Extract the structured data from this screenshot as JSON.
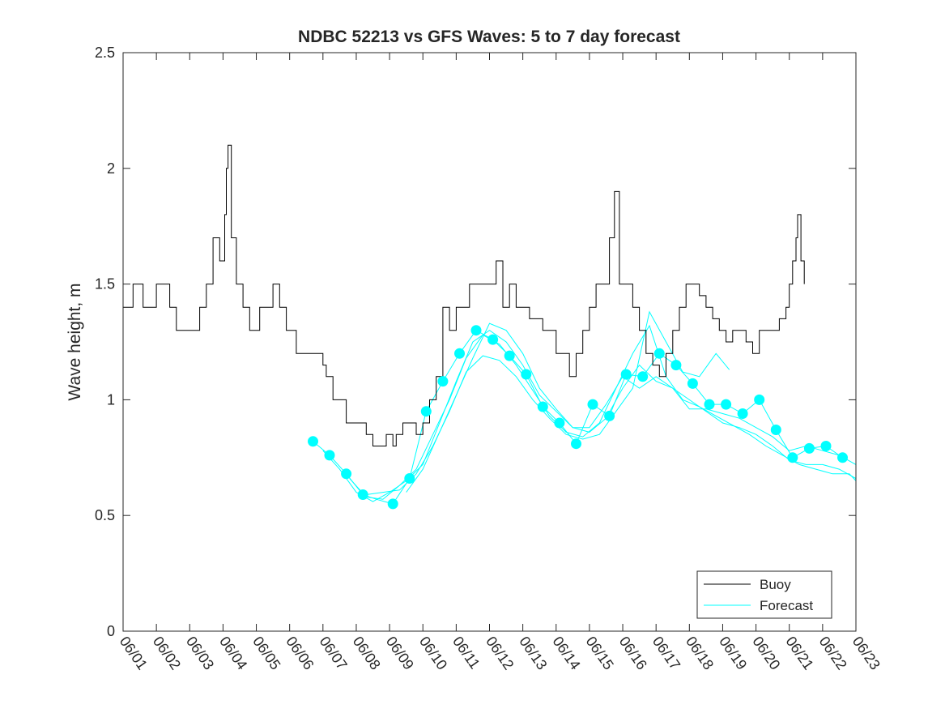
{
  "chart_data": {
    "type": "line",
    "title": "NDBC 52213 vs GFS Waves: 5 to 7 day forecast",
    "xlabel": "",
    "ylabel": "Wave height, m",
    "xlim": [
      0,
      22
    ],
    "ylim": [
      0,
      2.5
    ],
    "x_unit": "days since 06/01",
    "x_ticks": [
      0,
      1,
      2,
      3,
      4,
      5,
      6,
      7,
      8,
      9,
      10,
      11,
      12,
      13,
      14,
      15,
      16,
      17,
      18,
      19,
      20,
      21,
      22
    ],
    "x_tick_labels": [
      "06/01",
      "06/02",
      "06/03",
      "06/04",
      "06/05",
      "06/06",
      "06/07",
      "06/08",
      "06/09",
      "06/10",
      "06/11",
      "06/12",
      "06/13",
      "06/14",
      "06/15",
      "06/16",
      "06/17",
      "06/18",
      "06/19",
      "06/20",
      "06/21",
      "06/22",
      "06/23"
    ],
    "y_ticks": [
      0,
      0.5,
      1,
      1.5,
      2,
      2.5
    ],
    "y_tick_labels": [
      "0",
      "0.5",
      "1",
      "1.5",
      "2",
      "2.5"
    ],
    "grid": false,
    "legend_position": "bottom-right",
    "colors": {
      "buoy": "#000000",
      "forecast": "#00ffff"
    },
    "buoy": {
      "name": "Buoy",
      "points": [
        [
          0.0,
          1.4
        ],
        [
          0.3,
          1.5
        ],
        [
          0.6,
          1.4
        ],
        [
          1.0,
          1.5
        ],
        [
          1.4,
          1.4
        ],
        [
          1.6,
          1.3
        ],
        [
          1.8,
          1.3
        ],
        [
          2.0,
          1.3
        ],
        [
          2.2,
          1.3
        ],
        [
          2.3,
          1.4
        ],
        [
          2.5,
          1.5
        ],
        [
          2.7,
          1.7
        ],
        [
          2.9,
          1.6
        ],
        [
          3.05,
          1.8
        ],
        [
          3.1,
          2.0
        ],
        [
          3.15,
          2.1
        ],
        [
          3.25,
          1.7
        ],
        [
          3.4,
          1.5
        ],
        [
          3.6,
          1.4
        ],
        [
          3.8,
          1.3
        ],
        [
          4.0,
          1.3
        ],
        [
          4.1,
          1.4
        ],
        [
          4.3,
          1.4
        ],
        [
          4.5,
          1.5
        ],
        [
          4.7,
          1.4
        ],
        [
          4.9,
          1.3
        ],
        [
          5.0,
          1.3
        ],
        [
          5.2,
          1.2
        ],
        [
          5.4,
          1.2
        ],
        [
          5.6,
          1.2
        ],
        [
          5.8,
          1.2
        ],
        [
          6.0,
          1.15
        ],
        [
          6.1,
          1.1
        ],
        [
          6.3,
          1.0
        ],
        [
          6.5,
          1.0
        ],
        [
          6.7,
          0.9
        ],
        [
          6.9,
          0.9
        ],
        [
          7.1,
          0.9
        ],
        [
          7.3,
          0.85
        ],
        [
          7.5,
          0.8
        ],
        [
          7.7,
          0.8
        ],
        [
          7.9,
          0.85
        ],
        [
          8.1,
          0.8
        ],
        [
          8.2,
          0.85
        ],
        [
          8.4,
          0.9
        ],
        [
          8.6,
          0.9
        ],
        [
          8.8,
          0.85
        ],
        [
          9.0,
          0.9
        ],
        [
          9.2,
          1.0
        ],
        [
          9.4,
          1.1
        ],
        [
          9.6,
          1.4
        ],
        [
          9.8,
          1.3
        ],
        [
          10.0,
          1.4
        ],
        [
          10.2,
          1.4
        ],
        [
          10.4,
          1.5
        ],
        [
          10.6,
          1.5
        ],
        [
          10.8,
          1.5
        ],
        [
          11.0,
          1.5
        ],
        [
          11.2,
          1.6
        ],
        [
          11.4,
          1.4
        ],
        [
          11.6,
          1.5
        ],
        [
          11.8,
          1.4
        ],
        [
          12.0,
          1.4
        ],
        [
          12.2,
          1.35
        ],
        [
          12.4,
          1.35
        ],
        [
          12.6,
          1.3
        ],
        [
          12.8,
          1.3
        ],
        [
          13.0,
          1.2
        ],
        [
          13.2,
          1.2
        ],
        [
          13.4,
          1.1
        ],
        [
          13.6,
          1.2
        ],
        [
          13.8,
          1.3
        ],
        [
          14.0,
          1.4
        ],
        [
          14.2,
          1.5
        ],
        [
          14.4,
          1.5
        ],
        [
          14.6,
          1.7
        ],
        [
          14.75,
          1.9
        ],
        [
          14.9,
          1.5
        ],
        [
          15.1,
          1.5
        ],
        [
          15.3,
          1.4
        ],
        [
          15.5,
          1.3
        ],
        [
          15.7,
          1.2
        ],
        [
          15.9,
          1.15
        ],
        [
          16.1,
          1.1
        ],
        [
          16.3,
          1.2
        ],
        [
          16.5,
          1.3
        ],
        [
          16.7,
          1.4
        ],
        [
          16.9,
          1.5
        ],
        [
          17.1,
          1.5
        ],
        [
          17.3,
          1.45
        ],
        [
          17.5,
          1.4
        ],
        [
          17.7,
          1.35
        ],
        [
          17.9,
          1.3
        ],
        [
          18.1,
          1.25
        ],
        [
          18.3,
          1.3
        ],
        [
          18.5,
          1.3
        ],
        [
          18.7,
          1.25
        ],
        [
          18.9,
          1.2
        ],
        [
          19.1,
          1.3
        ],
        [
          19.3,
          1.3
        ],
        [
          19.5,
          1.3
        ],
        [
          19.7,
          1.35
        ],
        [
          19.9,
          1.4
        ],
        [
          20.0,
          1.5
        ],
        [
          20.1,
          1.6
        ],
        [
          20.2,
          1.7
        ],
        [
          20.25,
          1.8
        ],
        [
          20.35,
          1.6
        ],
        [
          20.45,
          1.5
        ]
      ]
    },
    "forecast": {
      "name": "Forecast",
      "markers": [
        [
          5.7,
          0.82
        ],
        [
          6.2,
          0.76
        ],
        [
          6.7,
          0.68
        ],
        [
          7.2,
          0.59
        ],
        [
          8.1,
          0.55
        ],
        [
          8.6,
          0.66
        ],
        [
          9.1,
          0.95
        ],
        [
          9.6,
          1.08
        ],
        [
          10.1,
          1.2
        ],
        [
          10.6,
          1.3
        ],
        [
          11.1,
          1.26
        ],
        [
          11.6,
          1.19
        ],
        [
          12.1,
          1.11
        ],
        [
          12.6,
          0.97
        ],
        [
          13.1,
          0.9
        ],
        [
          13.6,
          0.81
        ],
        [
          14.1,
          0.98
        ],
        [
          14.6,
          0.93
        ],
        [
          15.1,
          1.11
        ],
        [
          15.6,
          1.1
        ],
        [
          16.1,
          1.2
        ],
        [
          16.6,
          1.15
        ],
        [
          17.1,
          1.07
        ],
        [
          17.6,
          0.98
        ],
        [
          18.1,
          0.98
        ],
        [
          18.6,
          0.94
        ],
        [
          19.1,
          1.0
        ],
        [
          19.6,
          0.87
        ],
        [
          20.1,
          0.75
        ],
        [
          20.6,
          0.79
        ],
        [
          21.1,
          0.8
        ],
        [
          21.6,
          0.75
        ]
      ],
      "runs": [
        [
          [
            5.7,
            0.82
          ],
          [
            6.2,
            0.76
          ],
          [
            6.7,
            0.68
          ],
          [
            7.2,
            0.59
          ],
          [
            7.6,
            0.57
          ],
          [
            8.1,
            0.55
          ],
          [
            8.6,
            0.66
          ],
          [
            9.1,
            0.95
          ],
          [
            9.6,
            1.08
          ],
          [
            10.1,
            1.2
          ],
          [
            10.6,
            1.3
          ],
          [
            11.1,
            1.26
          ],
          [
            11.6,
            1.19
          ],
          [
            12.1,
            1.11
          ],
          [
            12.6,
            0.97
          ],
          [
            13.1,
            0.9
          ],
          [
            13.6,
            0.81
          ],
          [
            14.1,
            0.98
          ],
          [
            14.6,
            0.93
          ],
          [
            15.1,
            1.11
          ],
          [
            15.6,
            1.1
          ],
          [
            16.1,
            1.2
          ],
          [
            16.6,
            1.15
          ],
          [
            17.1,
            1.07
          ],
          [
            17.6,
            0.98
          ],
          [
            18.1,
            0.98
          ],
          [
            18.6,
            0.94
          ],
          [
            19.1,
            1.0
          ],
          [
            19.6,
            0.87
          ],
          [
            20.1,
            0.75
          ],
          [
            20.6,
            0.79
          ],
          [
            21.1,
            0.8
          ],
          [
            21.6,
            0.75
          ]
        ],
        [
          [
            6.0,
            0.78
          ],
          [
            6.5,
            0.7
          ],
          [
            7.0,
            0.6
          ],
          [
            7.5,
            0.56
          ],
          [
            8.0,
            0.6
          ],
          [
            8.5,
            0.65
          ],
          [
            9.0,
            0.72
          ],
          [
            9.5,
            0.9
          ],
          [
            10.0,
            1.08
          ],
          [
            10.5,
            1.25
          ],
          [
            11.0,
            1.3
          ],
          [
            11.5,
            1.25
          ],
          [
            12.0,
            1.15
          ],
          [
            12.5,
            1.02
          ],
          [
            13.0,
            0.95
          ],
          [
            13.5,
            0.88
          ],
          [
            14.0,
            0.88
          ],
          [
            14.5,
            0.98
          ],
          [
            15.0,
            1.1
          ],
          [
            15.5,
            1.05
          ],
          [
            16.0,
            1.1
          ],
          [
            16.5,
            1.05
          ],
          [
            17.0,
            1.0
          ],
          [
            17.5,
            0.95
          ],
          [
            18.0,
            0.9
          ],
          [
            18.5,
            0.88
          ],
          [
            19.0,
            0.85
          ],
          [
            19.5,
            0.8
          ],
          [
            20.0,
            0.74
          ],
          [
            20.5,
            0.72
          ],
          [
            21.0,
            0.72
          ],
          [
            21.5,
            0.7
          ],
          [
            22.0,
            0.66
          ]
        ],
        [
          [
            6.8,
            0.66
          ],
          [
            7.3,
            0.58
          ],
          [
            7.8,
            0.57
          ],
          [
            8.3,
            0.63
          ],
          [
            8.8,
            0.7
          ],
          [
            9.3,
            0.85
          ],
          [
            9.8,
            1.0
          ],
          [
            10.3,
            1.18
          ],
          [
            10.8,
            1.28
          ],
          [
            11.3,
            1.24
          ],
          [
            11.8,
            1.15
          ],
          [
            12.3,
            1.04
          ],
          [
            12.8,
            0.93
          ],
          [
            13.3,
            0.86
          ],
          [
            13.8,
            0.84
          ],
          [
            14.3,
            0.9
          ],
          [
            14.8,
            1.05
          ],
          [
            15.3,
            1.2
          ],
          [
            15.8,
            1.32
          ],
          [
            16.3,
            1.1
          ],
          [
            16.8,
            1.0
          ],
          [
            17.3,
            0.97
          ],
          [
            17.8,
            0.93
          ],
          [
            18.3,
            0.89
          ],
          [
            18.8,
            0.85
          ],
          [
            19.3,
            0.8
          ],
          [
            19.8,
            0.76
          ],
          [
            20.3,
            0.72
          ],
          [
            20.8,
            0.7
          ],
          [
            21.3,
            0.68
          ],
          [
            21.8,
            0.68
          ],
          [
            22.0,
            0.65
          ]
        ],
        [
          [
            7.3,
            0.59
          ],
          [
            7.8,
            0.6
          ],
          [
            8.3,
            0.61
          ],
          [
            8.8,
            0.68
          ],
          [
            9.3,
            0.8
          ],
          [
            9.8,
            0.95
          ],
          [
            10.3,
            1.12
          ],
          [
            10.8,
            1.19
          ],
          [
            11.3,
            1.17
          ],
          [
            11.8,
            1.1
          ],
          [
            12.3,
            1.0
          ],
          [
            12.8,
            0.92
          ],
          [
            13.3,
            0.85
          ],
          [
            13.8,
            0.83
          ],
          [
            14.3,
            0.85
          ],
          [
            14.8,
            0.95
          ],
          [
            15.3,
            1.05
          ],
          [
            15.8,
            1.38
          ],
          [
            16.3,
            1.25
          ],
          [
            16.8,
            1.12
          ],
          [
            17.3,
            1.1
          ],
          [
            17.8,
            1.2
          ],
          [
            18.2,
            1.13
          ]
        ],
        [
          [
            8.5,
            0.6
          ],
          [
            9.0,
            0.7
          ],
          [
            9.5,
            0.86
          ],
          [
            10.0,
            1.02
          ],
          [
            10.5,
            1.18
          ],
          [
            11.0,
            1.33
          ],
          [
            11.5,
            1.3
          ],
          [
            12.0,
            1.2
          ],
          [
            12.5,
            1.05
          ],
          [
            13.0,
            0.96
          ],
          [
            13.5,
            0.88
          ],
          [
            14.0,
            0.86
          ],
          [
            14.5,
            0.92
          ],
          [
            15.0,
            1.05
          ],
          [
            15.5,
            1.15
          ],
          [
            16.0,
            1.08
          ],
          [
            16.5,
            1.05
          ],
          [
            17.0,
            0.96
          ],
          [
            17.5,
            0.96
          ],
          [
            18.0,
            0.94
          ],
          [
            18.5,
            0.92
          ],
          [
            19.0,
            0.88
          ],
          [
            19.5,
            0.84
          ],
          [
            20.0,
            0.78
          ],
          [
            20.5,
            0.8
          ],
          [
            21.0,
            0.78
          ],
          [
            21.5,
            0.76
          ],
          [
            22.0,
            0.72
          ]
        ]
      ]
    }
  }
}
